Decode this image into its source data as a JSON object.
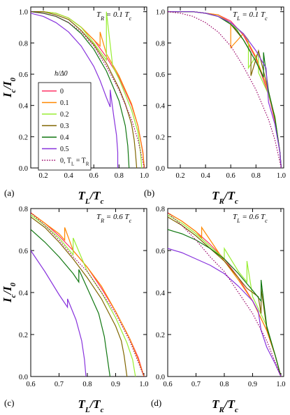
{
  "chart_data": [
    {
      "panel": "(a)",
      "type": "line",
      "annotation": "T_R = 0.1 T_c",
      "xlabel": "T_L/T_c",
      "ylabel": "I_c/I_0",
      "xlim": [
        0.1,
        1.02
      ],
      "ylim": [
        0.0,
        1.03
      ],
      "xticks": [
        "0.2",
        "0.4",
        "0.6",
        "0.8",
        "1.0"
      ],
      "yticks": [
        "0.0",
        "0.2",
        "0.4",
        "0.6",
        "0.8",
        "1.0"
      ],
      "series": [
        {
          "name": "0",
          "color": "#ff3366",
          "x": [
            0.1,
            0.2,
            0.3,
            0.4,
            0.5,
            0.6,
            0.7,
            0.8,
            0.9,
            0.95,
            0.99,
            1.0
          ],
          "y": [
            1.0,
            1.0,
            0.99,
            0.96,
            0.9,
            0.82,
            0.71,
            0.58,
            0.4,
            0.27,
            0.1,
            0.0
          ]
        },
        {
          "name": "0.1",
          "color": "#ff8800",
          "x": [
            0.1,
            0.2,
            0.3,
            0.4,
            0.5,
            0.6,
            0.65,
            0.65,
            0.7,
            0.8,
            0.9,
            0.95,
            0.99,
            1.0
          ],
          "y": [
            1.0,
            1.0,
            0.99,
            0.96,
            0.9,
            0.82,
            0.78,
            0.87,
            0.73,
            0.59,
            0.41,
            0.27,
            0.09,
            0.0
          ]
        },
        {
          "name": "0.2",
          "color": "#99ee33",
          "x": [
            0.1,
            0.2,
            0.3,
            0.4,
            0.5,
            0.6,
            0.7,
            0.7,
            0.75,
            0.8,
            0.9,
            0.95,
            0.97,
            0.98
          ],
          "y": [
            1.0,
            1.0,
            0.99,
            0.96,
            0.9,
            0.8,
            0.69,
            1.0,
            0.65,
            0.57,
            0.37,
            0.23,
            0.1,
            0.0
          ]
        },
        {
          "name": "0.3",
          "color": "#806600",
          "x": [
            0.1,
            0.2,
            0.3,
            0.4,
            0.5,
            0.6,
            0.7,
            0.8,
            0.85,
            0.9,
            0.92,
            0.93,
            0.94
          ],
          "y": [
            1.0,
            1.0,
            0.98,
            0.95,
            0.88,
            0.79,
            0.67,
            0.51,
            0.41,
            0.28,
            0.18,
            0.1,
            0.0
          ]
        },
        {
          "name": "0.4",
          "color": "#117711",
          "x": [
            0.1,
            0.2,
            0.3,
            0.4,
            0.5,
            0.6,
            0.7,
            0.8,
            0.85,
            0.87,
            0.88
          ],
          "y": [
            1.0,
            0.99,
            0.97,
            0.93,
            0.86,
            0.76,
            0.62,
            0.43,
            0.27,
            0.14,
            0.0
          ]
        },
        {
          "name": "0.5",
          "color": "#8833dd",
          "x": [
            0.1,
            0.2,
            0.3,
            0.4,
            0.5,
            0.6,
            0.65,
            0.7,
            0.73,
            0.73,
            0.76,
            0.78,
            0.79,
            0.79
          ],
          "y": [
            0.99,
            0.97,
            0.93,
            0.87,
            0.78,
            0.65,
            0.56,
            0.45,
            0.39,
            0.5,
            0.32,
            0.21,
            0.1,
            0.0
          ]
        },
        {
          "name": "0, T_L = T_R",
          "color": "#990066",
          "dotted": true,
          "x": [
            0.1,
            0.2,
            0.3,
            0.4,
            0.5,
            0.6,
            0.7,
            0.8,
            0.9,
            0.95,
            1.0
          ],
          "y": [
            1.0,
            0.99,
            0.97,
            0.93,
            0.87,
            0.78,
            0.65,
            0.5,
            0.31,
            0.18,
            0.0
          ]
        }
      ]
    },
    {
      "panel": "(b)",
      "type": "line",
      "annotation": "T_L = 0.1 T_c",
      "xlabel": "T_R/T_c",
      "xlim": [
        0.1,
        1.02
      ],
      "ylim": [
        0.0,
        1.03
      ],
      "xticks": [
        "0.2",
        "0.4",
        "0.6",
        "0.8",
        "1.0"
      ],
      "yticks": [
        "0.0",
        "0.2",
        "0.4",
        "0.6",
        "0.8",
        "1.0"
      ],
      "series": [
        {
          "name": "0",
          "color": "#ff3366",
          "x": [
            0.1,
            0.2,
            0.3,
            0.4,
            0.5,
            0.6,
            0.7,
            0.8,
            0.9,
            0.95,
            0.99,
            1.0
          ],
          "y": [
            1.0,
            1.0,
            1.0,
            0.99,
            0.98,
            0.94,
            0.85,
            0.7,
            0.47,
            0.3,
            0.1,
            0.0
          ]
        },
        {
          "name": "0.1",
          "color": "#ff8800",
          "x": [
            0.1,
            0.2,
            0.3,
            0.4,
            0.5,
            0.6,
            0.6,
            0.7,
            0.8,
            0.85,
            0.9,
            0.95,
            0.99,
            1.0
          ],
          "y": [
            1.0,
            1.0,
            1.0,
            0.99,
            0.98,
            0.93,
            0.77,
            0.86,
            0.71,
            0.6,
            0.49,
            0.31,
            0.1,
            0.0
          ]
        },
        {
          "name": "0.2",
          "color": "#99ee33",
          "x": [
            0.1,
            0.2,
            0.3,
            0.4,
            0.5,
            0.55,
            0.7,
            0.74,
            0.74,
            0.82,
            0.82,
            0.9,
            0.95,
            0.99,
            1.0
          ],
          "y": [
            1.0,
            1.0,
            1.0,
            0.99,
            0.97,
            0.95,
            0.86,
            0.82,
            0.64,
            0.74,
            0.61,
            0.47,
            0.33,
            0.1,
            0.0
          ]
        },
        {
          "name": "0.3",
          "color": "#806600",
          "x": [
            0.1,
            0.2,
            0.3,
            0.4,
            0.5,
            0.6,
            0.7,
            0.76,
            0.76,
            0.82,
            0.9,
            0.95,
            0.99,
            1.0
          ],
          "y": [
            1.0,
            1.0,
            1.0,
            0.99,
            0.97,
            0.92,
            0.82,
            0.74,
            0.59,
            0.75,
            0.49,
            0.32,
            0.1,
            0.0
          ]
        },
        {
          "name": "0.4",
          "color": "#117711",
          "x": [
            0.1,
            0.2,
            0.3,
            0.4,
            0.5,
            0.6,
            0.65,
            0.7,
            0.8,
            0.86,
            0.86,
            0.9,
            0.95,
            0.99,
            1.0
          ],
          "y": [
            1.0,
            1.0,
            1.0,
            0.99,
            0.97,
            0.92,
            0.88,
            0.82,
            0.68,
            0.58,
            0.74,
            0.49,
            0.32,
            0.1,
            0.0
          ]
        },
        {
          "name": "0.5",
          "color": "#8833dd",
          "x": [
            0.1,
            0.2,
            0.3,
            0.4,
            0.5,
            0.6,
            0.7,
            0.8,
            0.85,
            0.88,
            0.9,
            0.95,
            0.99,
            1.0
          ],
          "y": [
            1.0,
            1.0,
            1.0,
            0.99,
            0.97,
            0.93,
            0.86,
            0.75,
            0.68,
            0.64,
            0.42,
            0.28,
            0.1,
            0.0
          ]
        },
        {
          "name": "0, T_L = T_R",
          "color": "#990066",
          "dotted": true,
          "x": [
            0.1,
            0.2,
            0.3,
            0.4,
            0.5,
            0.6,
            0.7,
            0.8,
            0.9,
            0.95,
            1.0
          ],
          "y": [
            1.0,
            0.99,
            0.97,
            0.93,
            0.87,
            0.78,
            0.65,
            0.5,
            0.31,
            0.18,
            0.0
          ]
        }
      ]
    },
    {
      "panel": "(c)",
      "type": "line",
      "annotation": "T_R = 0.6 T_c",
      "xlabel": "T_L/T_c",
      "ylabel": "I_c/I_0",
      "xlim": [
        0.6,
        1.01
      ],
      "ylim": [
        0.0,
        0.8
      ],
      "xticks": [
        "0.6",
        "0.7",
        "0.8",
        "0.9",
        "1.0"
      ],
      "yticks": [
        "0.0",
        "0.2",
        "0.4",
        "0.6",
        "0.8"
      ],
      "series": [
        {
          "name": "0",
          "color": "#ff3366",
          "x": [
            0.6,
            0.65,
            0.7,
            0.75,
            0.8,
            0.85,
            0.9,
            0.95,
            0.98,
            1.0
          ],
          "y": [
            0.78,
            0.73,
            0.67,
            0.6,
            0.52,
            0.42,
            0.31,
            0.18,
            0.09,
            0.0
          ]
        },
        {
          "name": "0.1",
          "color": "#ff8800",
          "x": [
            0.6,
            0.65,
            0.7,
            0.72,
            0.72,
            0.75,
            0.8,
            0.85,
            0.9,
            0.95,
            0.98,
            1.0
          ],
          "y": [
            0.78,
            0.73,
            0.68,
            0.65,
            0.71,
            0.6,
            0.52,
            0.43,
            0.31,
            0.18,
            0.08,
            0.0
          ]
        },
        {
          "name": "0.2",
          "color": "#99ee33",
          "x": [
            0.6,
            0.65,
            0.7,
            0.75,
            0.75,
            0.8,
            0.85,
            0.9,
            0.94,
            0.96,
            0.97
          ],
          "y": [
            0.77,
            0.72,
            0.66,
            0.58,
            0.66,
            0.5,
            0.4,
            0.28,
            0.16,
            0.08,
            0.0
          ]
        },
        {
          "name": "0.3",
          "color": "#806600",
          "x": [
            0.6,
            0.65,
            0.7,
            0.75,
            0.8,
            0.85,
            0.9,
            0.92,
            0.93,
            0.94
          ],
          "y": [
            0.76,
            0.71,
            0.64,
            0.56,
            0.47,
            0.37,
            0.24,
            0.17,
            0.1,
            0.0
          ]
        },
        {
          "name": "0.4",
          "color": "#117711",
          "x": [
            0.6,
            0.65,
            0.7,
            0.75,
            0.77,
            0.77,
            0.8,
            0.84,
            0.86,
            0.88
          ],
          "y": [
            0.7,
            0.64,
            0.57,
            0.49,
            0.45,
            0.51,
            0.42,
            0.3,
            0.19,
            0.0
          ]
        },
        {
          "name": "0.5",
          "color": "#8833dd",
          "x": [
            0.6,
            0.65,
            0.7,
            0.73,
            0.73,
            0.76,
            0.78,
            0.79,
            0.795
          ],
          "y": [
            0.6,
            0.5,
            0.39,
            0.33,
            0.37,
            0.27,
            0.17,
            0.08,
            0.0
          ]
        },
        {
          "name": "0, T_L = T_R",
          "color": "#990066",
          "dotted": true,
          "x": [
            0.6,
            0.65,
            0.7,
            0.75,
            0.8,
            0.85,
            0.9,
            0.95,
            1.0
          ],
          "y": [
            0.78,
            0.72,
            0.65,
            0.57,
            0.5,
            0.4,
            0.3,
            0.17,
            0.0
          ]
        }
      ]
    },
    {
      "panel": "(d)",
      "type": "line",
      "annotation": "T_L = 0.6 T_c",
      "xlabel": "T_R/T_c",
      "xlim": [
        0.6,
        1.01
      ],
      "ylim": [
        0.0,
        0.8
      ],
      "xticks": [
        "0.6",
        "0.7",
        "0.8",
        "0.9",
        "1.0"
      ],
      "yticks": [
        "0.0",
        "0.2",
        "0.4",
        "0.6",
        "0.8"
      ],
      "series": [
        {
          "name": "0",
          "color": "#ff3366",
          "x": [
            0.6,
            0.65,
            0.7,
            0.75,
            0.8,
            0.85,
            0.9,
            0.95,
            0.98,
            1.0
          ],
          "y": [
            0.78,
            0.74,
            0.69,
            0.63,
            0.56,
            0.47,
            0.36,
            0.22,
            0.1,
            0.0
          ]
        },
        {
          "name": "0.1",
          "color": "#ff8800",
          "x": [
            0.6,
            0.65,
            0.7,
            0.72,
            0.72,
            0.8,
            0.85,
            0.9,
            0.95,
            0.98,
            1.0
          ],
          "y": [
            0.78,
            0.74,
            0.69,
            0.66,
            0.71,
            0.55,
            0.46,
            0.36,
            0.22,
            0.1,
            0.0
          ]
        },
        {
          "name": "0.2",
          "color": "#99ee33",
          "x": [
            0.6,
            0.65,
            0.7,
            0.75,
            0.8,
            0.8,
            0.85,
            0.88,
            0.88,
            0.9,
            0.95,
            0.98,
            1.0
          ],
          "y": [
            0.77,
            0.73,
            0.68,
            0.62,
            0.56,
            0.61,
            0.5,
            0.45,
            0.55,
            0.38,
            0.24,
            0.1,
            0.0
          ]
        },
        {
          "name": "0.3",
          "color": "#806600",
          "x": [
            0.6,
            0.65,
            0.7,
            0.75,
            0.8,
            0.85,
            0.88,
            0.9,
            0.92,
            0.93,
            0.93,
            0.95,
            0.98,
            1.0
          ],
          "y": [
            0.76,
            0.72,
            0.67,
            0.61,
            0.55,
            0.47,
            0.42,
            0.4,
            0.38,
            0.3,
            0.42,
            0.23,
            0.1,
            0.0
          ]
        },
        {
          "name": "0.4",
          "color": "#117711",
          "x": [
            0.6,
            0.65,
            0.7,
            0.75,
            0.8,
            0.85,
            0.9,
            0.93,
            0.93,
            0.95,
            0.98,
            1.0
          ],
          "y": [
            0.7,
            0.68,
            0.65,
            0.61,
            0.56,
            0.49,
            0.41,
            0.36,
            0.46,
            0.24,
            0.1,
            0.0
          ]
        },
        {
          "name": "0.5",
          "color": "#8833dd",
          "x": [
            0.6,
            0.65,
            0.7,
            0.75,
            0.8,
            0.85,
            0.9,
            0.92,
            0.93,
            0.95,
            0.98,
            1.0
          ],
          "y": [
            0.61,
            0.59,
            0.56,
            0.53,
            0.49,
            0.43,
            0.36,
            0.31,
            0.22,
            0.14,
            0.06,
            0.0
          ]
        },
        {
          "name": "0, T_L = T_R",
          "color": "#990066",
          "dotted": true,
          "x": [
            0.6,
            0.65,
            0.7,
            0.75,
            0.8,
            0.85,
            0.9,
            0.95,
            1.0
          ],
          "y": [
            0.78,
            0.72,
            0.65,
            0.57,
            0.5,
            0.4,
            0.3,
            0.17,
            0.0
          ]
        }
      ]
    }
  ],
  "legend": {
    "title": "h/Δ0",
    "entries": [
      "0",
      "0.1",
      "0.2",
      "0.3",
      "0.4",
      "0.5",
      "0, T_L = T_R"
    ]
  }
}
